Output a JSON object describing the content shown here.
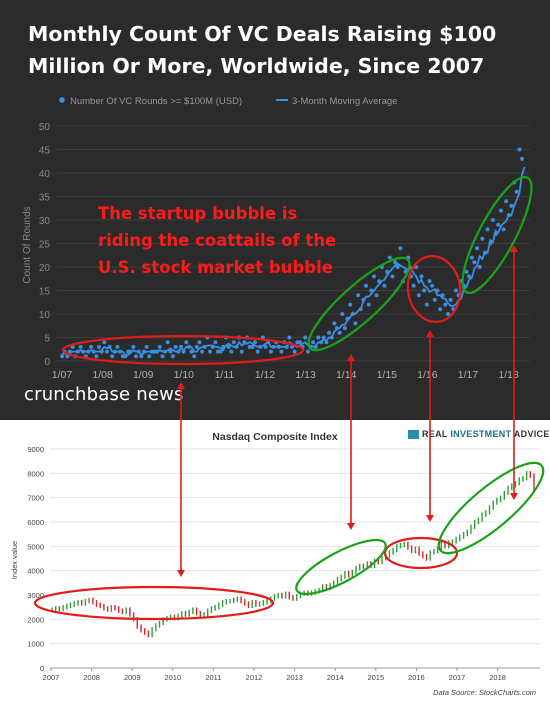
{
  "title_line1": "Monthly Count Of VC Deals Raising $100",
  "title_line2": "Million Or More, Worldwide, Since 2007",
  "brand": "crunchbase news",
  "annotation": [
    "The startup bubble is",
    "riding the coattails of the",
    "U.S. stock market bubble"
  ],
  "logo": {
    "part1": "REAL",
    "part2": "INVESTMENT",
    "part3": "ADVICE"
  },
  "colors": {
    "dark_bg": "#2b2b2b",
    "series": "#3a8fe0",
    "red": "#e31b1b",
    "green": "#1aa31a",
    "up_bar": "#2e9e3b",
    "down_bar": "#d62828"
  },
  "chart_data": [
    {
      "type": "scatter",
      "legend": [
        "Number Of VC Rounds >= $100M (USD)",
        "3-Month Moving Average"
      ],
      "ylabel": "Count Of Rounds",
      "xlabel": "",
      "yticks": [
        0,
        5,
        10,
        15,
        20,
        25,
        30,
        35,
        40,
        45,
        50
      ],
      "xticks": [
        "1/07",
        "1/08",
        "1/09",
        "1/10",
        "1/11",
        "1/12",
        "1/13",
        "1/14",
        "1/15",
        "1/16",
        "1/17",
        "1/18"
      ],
      "ylim": [
        0,
        50
      ],
      "grid": true,
      "legend_position": "top",
      "series": [
        {
          "name": "Number Of VC Rounds >= $100M (USD)",
          "style": "points",
          "values": [
            1,
            2,
            1,
            2,
            3,
            1,
            2,
            3,
            2,
            1,
            2,
            3,
            2,
            1,
            3,
            2,
            4,
            2,
            3,
            1,
            2,
            3,
            2,
            1,
            1,
            2,
            2,
            3,
            1,
            2,
            1,
            2,
            3,
            1,
            2,
            2,
            2,
            3,
            1,
            2,
            4,
            2,
            1,
            3,
            2,
            3,
            2,
            4,
            3,
            2,
            1,
            3,
            4,
            2,
            3,
            5,
            2,
            3,
            4,
            2,
            2,
            3,
            5,
            3,
            2,
            4,
            3,
            5,
            2,
            4,
            5,
            3,
            3,
            4,
            2,
            3,
            5,
            3,
            4,
            2,
            3,
            4,
            3,
            2,
            4,
            3,
            5,
            3,
            2,
            4,
            4,
            3,
            5,
            2,
            3,
            4,
            3,
            5,
            4,
            5,
            4,
            6,
            5,
            8,
            7,
            6,
            10,
            7,
            9,
            12,
            10,
            8,
            14,
            11,
            13,
            16,
            12,
            15,
            18,
            14,
            17,
            20,
            16,
            19,
            22,
            18,
            21,
            20,
            24,
            17,
            19,
            22,
            18,
            16,
            20,
            14,
            18,
            15,
            12,
            17,
            16,
            13,
            15,
            11,
            14,
            12,
            10,
            13,
            11,
            15,
            14,
            17,
            16,
            19,
            18,
            22,
            21,
            24,
            20,
            26,
            23,
            28,
            25,
            30,
            27,
            29,
            32,
            28,
            34,
            31,
            33,
            38,
            36,
            45,
            43
          ]
        },
        {
          "name": "3-Month Moving Average",
          "style": "line",
          "values": [
            1.3,
            1.7,
            1.3,
            1.7,
            2.0,
            2.0,
            2.0,
            2.3,
            2.0,
            2.0,
            2.0,
            2.3,
            2.0,
            2.0,
            2.0,
            2.3,
            3.0,
            2.7,
            3.0,
            2.0,
            2.0,
            2.0,
            2.0,
            2.0,
            1.3,
            1.3,
            1.7,
            2.3,
            2.0,
            2.0,
            1.3,
            1.7,
            2.0,
            2.0,
            2.0,
            1.7,
            2.0,
            2.3,
            2.0,
            2.0,
            2.3,
            2.7,
            2.3,
            2.0,
            2.0,
            2.7,
            2.3,
            3.0,
            3.0,
            3.0,
            2.0,
            2.0,
            2.7,
            3.0,
            3.0,
            3.3,
            3.3,
            3.3,
            3.0,
            3.0,
            2.7,
            2.3,
            3.3,
            3.7,
            3.3,
            3.0,
            3.0,
            4.0,
            3.3,
            3.7,
            3.7,
            4.0,
            3.7,
            3.3,
            3.0,
            3.0,
            3.3,
            3.7,
            4.0,
            3.0,
            3.0,
            3.0,
            3.3,
            3.0,
            3.0,
            3.0,
            4.0,
            3.7,
            3.3,
            3.0,
            3.3,
            3.7,
            4.0,
            3.3,
            3.3,
            3.0,
            3.3,
            4.0,
            4.0,
            4.7,
            4.3,
            5.0,
            5.0,
            6.3,
            6.7,
            7.0,
            7.7,
            7.7,
            8.7,
            9.3,
            10.3,
            10.0,
            10.7,
            11.0,
            12.7,
            13.7,
            13.7,
            14.3,
            15.0,
            15.7,
            16.3,
            17.0,
            17.3,
            18.3,
            19.0,
            19.7,
            20.3,
            20.7,
            20.3,
            20.0,
            19.7,
            19.3,
            20.0,
            18.7,
            18.0,
            16.7,
            17.3,
            16.0,
            15.7,
            14.7,
            15.0,
            15.3,
            14.0,
            14.0,
            13.3,
            13.3,
            12.3,
            11.7,
            11.7,
            12.0,
            13.0,
            13.3,
            15.3,
            15.7,
            17.3,
            17.7,
            19.7,
            20.3,
            22.3,
            21.7,
            23.3,
            23.0,
            25.7,
            25.3,
            27.7,
            27.3,
            28.7,
            29.3,
            29.7,
            31.3,
            31.0,
            33.0,
            34.3,
            35.7,
            39.7,
            41.3
          ]
        }
      ]
    },
    {
      "type": "bar",
      "title": "Nasdaq Composite Index",
      "ylabel": "Index value",
      "xlabel": "",
      "source": "Data Source: StockCharts.com",
      "yticks": [
        0,
        1000,
        2000,
        3000,
        4000,
        5000,
        6000,
        7000,
        8000,
        9000
      ],
      "xticks": [
        "2007",
        "2008",
        "2009",
        "2010",
        "2011",
        "2012",
        "2013",
        "2014",
        "2015",
        "2016",
        "2017",
        "2018"
      ],
      "ylim": [
        0,
        9000
      ],
      "grid": true,
      "legend_position": "none",
      "series": [
        {
          "name": "",
          "style": "ohlc",
          "values": [
            2400,
            2450,
            2420,
            2500,
            2550,
            2600,
            2650,
            2700,
            2650,
            2750,
            2800,
            2700,
            2600,
            2550,
            2450,
            2400,
            2500,
            2450,
            2350,
            2300,
            2400,
            2200,
            2000,
            1700,
            1550,
            1450,
            1350,
            1600,
            1750,
            1850,
            2000,
            2050,
            2100,
            2050,
            2150,
            2250,
            2200,
            2300,
            2400,
            2250,
            2150,
            2200,
            2350,
            2450,
            2500,
            2600,
            2700,
            2750,
            2750,
            2800,
            2850,
            2750,
            2650,
            2550,
            2700,
            2600,
            2650,
            2700,
            2750,
            2850,
            2950,
            3000,
            2950,
            3050,
            2900,
            2850,
            2950,
            3050,
            3100,
            3050,
            3100,
            3150,
            3200,
            3350,
            3300,
            3400,
            3500,
            3650,
            3750,
            3900,
            3800,
            3950,
            4100,
            4200,
            4150,
            4300,
            4200,
            4400,
            4350,
            4500,
            4600,
            4750,
            4850,
            5000,
            5050,
            5100,
            4950,
            4800,
            4900,
            4700,
            4600,
            4500,
            4750,
            4800,
            4900,
            5100,
            5000,
            5150,
            5200,
            5300,
            5400,
            5500,
            5600,
            5800,
            6000,
            6100,
            6300,
            6400,
            6600,
            6800,
            6900,
            7000,
            7200,
            7400,
            7500,
            7600,
            7750,
            7800,
            8000,
            7900,
            7300
          ]
        }
      ]
    }
  ]
}
